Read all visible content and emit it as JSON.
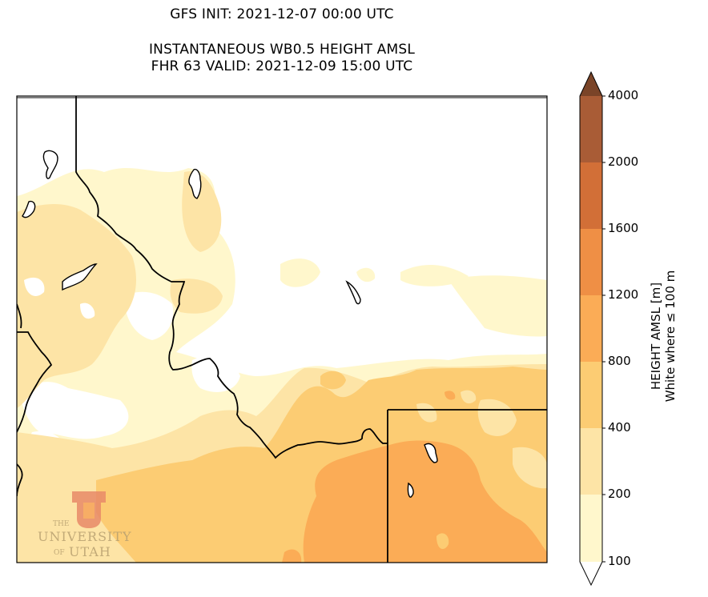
{
  "title": {
    "init": "GFS INIT: 2021-12-07 00:00 UTC",
    "product": "INSTANTANEOUS WB0.5 HEIGHT AMSL",
    "valid": "FHR 63 VALID: 2021-12-09 15:00 UTC"
  },
  "colorbar": {
    "levels": [
      "4000",
      "2000",
      "1600",
      "1200",
      "800",
      "400",
      "200",
      "100"
    ],
    "label_line1": "HEIGHT AMSL [m]",
    "label_line2": "White where ≤ 100 m",
    "colors": {
      "above_4000": "#7a4428",
      "2000_4000": "#a95c36",
      "1600_2000": "#d26f37",
      "1200_1600": "#ef8f45",
      "800_1200": "#fbac56",
      "400_800": "#fccc73",
      "200_400": "#fde4a6",
      "100_200": "#fff7cc",
      "below_100": "#ffffff"
    }
  },
  "logo": {
    "line1": "THE",
    "line2": "UNIVERSITY",
    "line3": "OF",
    "line4": "UTAH"
  }
}
